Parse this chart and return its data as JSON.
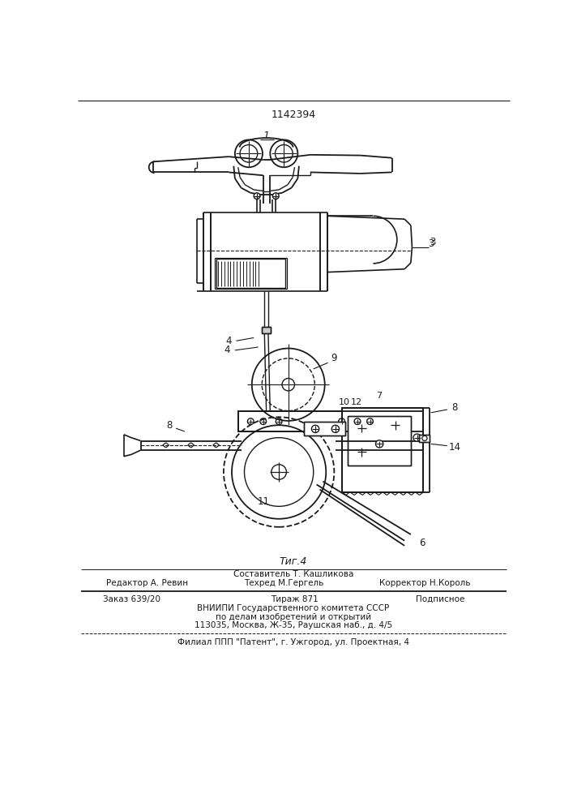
{
  "patent_number": "1142394",
  "fig_label": "Τиг.4",
  "label1": "1",
  "label3": "3",
  "label4": "4",
  "label6": "6",
  "label7": "7",
  "label8a": "8",
  "label8b": "8",
  "label9": "9",
  "label10": "10",
  "label11": "11",
  "label12": "12",
  "label14": "14",
  "composer": "Составитель Т. Кашликова",
  "editor": "Редактор А. Ревин",
  "techred": "Техред М.Гергель",
  "corrector": "Корректор Н.Король",
  "order": "Заказ 639/20",
  "tirazh": "Тираж 871",
  "podpisnoe": "Подписное",
  "vnipi1": "ВНИИПИ Государственного комитета СССР",
  "vnipi2": "по делам изобретений и открытий",
  "vnipi3": "113035, Москва, Ж-35, Раушская наб., д. 4/5",
  "filial": "Филиал ППП \"Патент\", г. Ужгород, ул. Проектная, 4",
  "bg_color": "#ffffff",
  "line_color": "#1a1a1a"
}
